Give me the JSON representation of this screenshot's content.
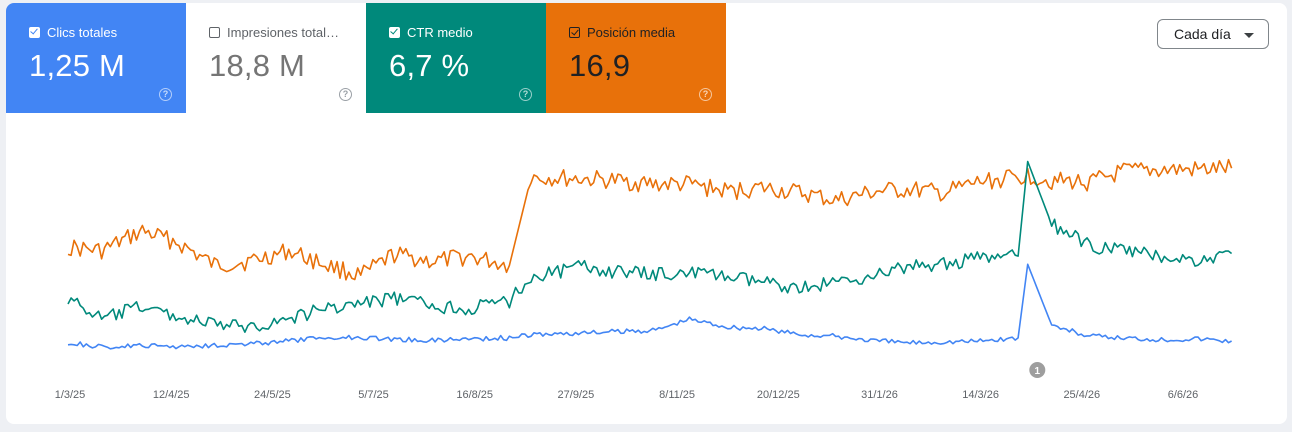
{
  "metrics": [
    {
      "label": "Clics totales",
      "value": "1,25 M",
      "checked": true,
      "color": "#4285f4"
    },
    {
      "label": "Impresiones total…",
      "value": "18,8 M",
      "checked": false,
      "color": "#5e35b1"
    },
    {
      "label": "CTR medio",
      "value": "6,7 %",
      "checked": true,
      "color": "#00897b"
    },
    {
      "label": "Posición media",
      "value": "16,9",
      "checked": true,
      "color": "#e8710a"
    }
  ],
  "help_icon": "question-circle-icon",
  "period_select": {
    "label": "Cada día",
    "icon": "caret-down-icon"
  },
  "annotation": {
    "label": "1",
    "date": "2026-04-09"
  },
  "chart_data": {
    "type": "line",
    "x_axis_labels": [
      "1/3/25",
      "12/4/25",
      "24/5/25",
      "5/7/25",
      "16/8/25",
      "27/9/25",
      "8/11/25",
      "20/12/25",
      "31/1/26",
      "14/3/26",
      "25/4/26",
      "6/6/26"
    ],
    "x_range": [
      "2025-03-01",
      "2026-06-30"
    ],
    "y_axis_visible": false,
    "grid": false,
    "series": [
      {
        "name": "Posición media",
        "color": "#e8710a",
        "x": [
          "2025-03-01",
          "2025-03-15",
          "2025-04-01",
          "2025-04-15",
          "2025-05-01",
          "2025-05-15",
          "2025-06-01",
          "2025-06-15",
          "2025-07-01",
          "2025-07-15",
          "2025-08-01",
          "2025-08-15",
          "2025-09-01",
          "2025-09-10",
          "2025-10-01",
          "2025-10-15",
          "2025-11-01",
          "2025-11-15",
          "2025-12-01",
          "2025-12-15",
          "2026-01-01",
          "2026-01-15",
          "2026-02-01",
          "2026-02-15",
          "2026-03-01",
          "2026-03-15",
          "2026-04-01",
          "2026-04-05",
          "2026-04-15",
          "2026-05-01",
          "2026-05-15",
          "2026-06-01",
          "2026-06-15",
          "2026-06-29"
        ],
        "values": [
          12.2,
          12.0,
          13.1,
          12.5,
          11.2,
          11.4,
          12.0,
          11.3,
          10.6,
          11.8,
          11.4,
          11.7,
          11.2,
          16.1,
          16.0,
          15.9,
          15.7,
          15.7,
          15.3,
          15.5,
          15.2,
          14.8,
          15.3,
          15.4,
          15.2,
          15.8,
          16.1,
          16.2,
          15.9,
          15.8,
          16.4,
          16.5,
          16.5,
          16.6
        ]
      },
      {
        "name": "CTR medio",
        "color": "#00897b",
        "x": [
          "2025-03-01",
          "2025-03-15",
          "2025-04-01",
          "2025-04-15",
          "2025-05-01",
          "2025-05-15",
          "2025-06-01",
          "2025-06-15",
          "2025-07-01",
          "2025-07-15",
          "2025-08-01",
          "2025-08-15",
          "2025-09-01",
          "2025-09-10",
          "2025-10-01",
          "2025-10-15",
          "2025-11-01",
          "2025-11-15",
          "2025-12-01",
          "2025-12-15",
          "2026-01-01",
          "2026-01-15",
          "2026-02-01",
          "2026-02-15",
          "2026-03-01",
          "2026-03-15",
          "2026-04-01",
          "2026-04-05",
          "2026-04-15",
          "2026-05-01",
          "2026-05-15",
          "2026-06-01",
          "2026-06-15",
          "2026-06-29"
        ],
        "values": [
          6.4,
          5.6,
          6.1,
          5.7,
          5.4,
          5.3,
          5.6,
          6.0,
          6.2,
          6.4,
          6.1,
          6.0,
          6.3,
          7.2,
          7.6,
          7.4,
          7.3,
          7.4,
          7.2,
          7.0,
          6.8,
          7.0,
          7.3,
          7.6,
          7.7,
          7.9,
          8.0,
          11.6,
          9.2,
          8.4,
          8.2,
          8.0,
          7.8,
          8.1
        ]
      },
      {
        "name": "Clics totales",
        "color": "#4285f4",
        "x": [
          "2025-03-01",
          "2025-03-15",
          "2025-04-01",
          "2025-04-15",
          "2025-05-01",
          "2025-05-15",
          "2025-06-01",
          "2025-06-15",
          "2025-07-01",
          "2025-07-15",
          "2025-08-01",
          "2025-08-15",
          "2025-09-01",
          "2025-09-10",
          "2025-10-01",
          "2025-10-15",
          "2025-11-01",
          "2025-11-15",
          "2025-12-01",
          "2025-12-15",
          "2026-01-01",
          "2026-01-15",
          "2026-02-01",
          "2026-02-15",
          "2026-03-01",
          "2026-03-15",
          "2026-04-01",
          "2026-04-05",
          "2026-04-15",
          "2026-05-01",
          "2026-05-15",
          "2026-06-01",
          "2026-06-15",
          "2026-06-29"
        ],
        "values": [
          2600,
          2300,
          2400,
          2350,
          2450,
          2500,
          2700,
          2900,
          2950,
          2800,
          2750,
          2850,
          2900,
          3100,
          3200,
          3300,
          3400,
          4100,
          3600,
          3500,
          3100,
          3000,
          2700,
          2600,
          2650,
          2700,
          2900,
          7600,
          3700,
          3000,
          2900,
          2800,
          2850,
          2700
        ]
      }
    ]
  }
}
